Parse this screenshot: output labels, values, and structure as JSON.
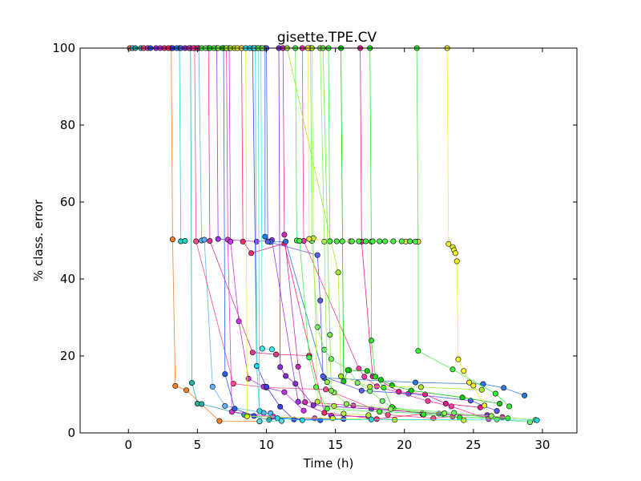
{
  "chart_data": {
    "type": "line",
    "title": "gisette.TPE.CV",
    "xlabel": "Time (h)",
    "ylabel": "% class. error",
    "xlim": [
      -3.5,
      32.5
    ],
    "ylim": [
      0,
      100
    ],
    "xticks": [
      0,
      5,
      10,
      15,
      20,
      25,
      30
    ],
    "yticks": [
      0,
      20,
      40,
      60,
      80,
      100
    ],
    "grid": false,
    "legend": "none",
    "series": [
      {
        "color": "#f4812c",
        "points": [
          [
            0.1,
            100
          ],
          [
            3.1,
            100
          ],
          [
            3.2,
            50.3
          ],
          [
            3.4,
            12.2
          ],
          [
            4.2,
            11.1
          ],
          [
            6.6,
            3.1
          ],
          [
            9.5,
            3.0
          ]
        ]
      },
      {
        "color": "#62b3ff",
        "points": [
          [
            0.3,
            100
          ],
          [
            5.1,
            100
          ],
          [
            5.3,
            50.0
          ],
          [
            5.5,
            50.2
          ],
          [
            6.1,
            12.0
          ],
          [
            7.0,
            7.0
          ],
          [
            9.8,
            5.2
          ],
          [
            10.3,
            5.1
          ]
        ]
      },
      {
        "color": "#24b2a8",
        "points": [
          [
            0.5,
            100
          ],
          [
            4.5,
            100
          ],
          [
            4.6,
            13.0
          ],
          [
            5.0,
            7.6
          ],
          [
            5.3,
            7.5
          ],
          [
            8.4,
            4.7
          ],
          [
            10.2,
            3.4
          ]
        ]
      },
      {
        "color": "#1fd4c6",
        "points": [
          [
            0.9,
            100
          ],
          [
            3.7,
            100
          ],
          [
            3.8,
            49.8
          ],
          [
            4.1,
            49.9
          ]
        ]
      },
      {
        "color": "#ff4d8a",
        "points": [
          [
            1.1,
            100
          ],
          [
            4.8,
            100
          ],
          [
            4.9,
            49.8
          ],
          [
            7.6,
            12.8
          ],
          [
            10.0,
            11.8
          ],
          [
            14.3,
            11.3
          ],
          [
            18.8,
            4.7
          ],
          [
            22.1,
            3.8
          ],
          [
            23.5,
            4.3
          ]
        ]
      },
      {
        "color": "#e838c8",
        "points": [
          [
            1.4,
            100
          ],
          [
            7.1,
            100
          ],
          [
            7.2,
            50.2
          ],
          [
            7.5,
            5.5
          ],
          [
            10.5,
            4.2
          ],
          [
            13.5,
            3.8
          ]
        ]
      },
      {
        "color": "#2a5df0",
        "points": [
          [
            1.6,
            100
          ],
          [
            6.9,
            100
          ],
          [
            7.0,
            15.3
          ],
          [
            7.7,
            6.3
          ],
          [
            9.1,
            4.4
          ],
          [
            13.9,
            3.3
          ]
        ]
      },
      {
        "color": "#9e35f0",
        "points": [
          [
            2.0,
            100
          ],
          [
            6.4,
            100
          ],
          [
            6.5,
            50.4
          ],
          [
            9.3,
            49.7
          ],
          [
            10.4,
            50.1
          ],
          [
            12.3,
            8.1
          ],
          [
            14.7,
            4.5
          ],
          [
            17.4,
            4.2
          ]
        ]
      },
      {
        "color": "#c934e8",
        "points": [
          [
            2.3,
            100
          ],
          [
            7.3,
            100
          ],
          [
            7.4,
            49.7
          ],
          [
            8.0,
            29.0
          ],
          [
            8.7,
            14.1
          ],
          [
            9.8,
            12.0
          ],
          [
            11.3,
            10.6
          ],
          [
            12.7,
            5.8
          ]
        ]
      },
      {
        "color": "#e7358f",
        "points": [
          [
            2.6,
            100
          ],
          [
            5.8,
            100
          ],
          [
            5.9,
            49.9
          ],
          [
            9.0,
            20.9
          ],
          [
            10.7,
            20.4
          ],
          [
            13.1,
            20.1
          ]
        ]
      },
      {
        "color": "#ff2a6d",
        "points": [
          [
            2.9,
            100
          ],
          [
            8.2,
            100
          ],
          [
            8.3,
            49.7
          ],
          [
            8.9,
            46.7
          ],
          [
            11.3,
            49.2
          ],
          [
            14.2,
            5.2
          ],
          [
            18.0,
            3.6
          ],
          [
            21.3,
            4.9
          ]
        ]
      },
      {
        "color": "#3c3cf0",
        "points": [
          [
            3.2,
            100
          ],
          [
            9.0,
            100
          ],
          [
            9.3,
            17.4
          ],
          [
            10.0,
            12.0
          ],
          [
            11.0,
            6.8
          ],
          [
            12.0,
            3.5
          ],
          [
            15.6,
            3.6
          ]
        ]
      },
      {
        "color": "#2a7ae2",
        "points": [
          [
            3.5,
            100
          ],
          [
            9.9,
            100
          ],
          [
            9.9,
            51.0
          ],
          [
            10.3,
            49.6
          ],
          [
            11.4,
            49.7
          ],
          [
            14.2,
            14.3
          ],
          [
            20.8,
            13.1
          ],
          [
            25.7,
            12.7
          ],
          [
            27.2,
            11.7
          ],
          [
            28.7,
            9.7
          ]
        ]
      },
      {
        "color": "#5a5cf0",
        "points": [
          [
            3.8,
            100
          ],
          [
            10.0,
            100
          ],
          [
            10.1,
            49.7
          ],
          [
            13.7,
            46.2
          ],
          [
            13.9,
            34.4
          ],
          [
            14.1,
            14.7
          ],
          [
            16.9,
            11.0
          ],
          [
            20.3,
            10.2
          ],
          [
            24.8,
            8.4
          ],
          [
            26.7,
            5.7
          ]
        ]
      },
      {
        "color": "#8c2bd8",
        "points": [
          [
            4.1,
            100
          ],
          [
            10.9,
            100
          ],
          [
            11.0,
            17.1
          ],
          [
            11.4,
            14.8
          ],
          [
            12.1,
            12.8
          ],
          [
            13.4,
            7.2
          ],
          [
            17.6,
            6.2
          ],
          [
            22.5,
            5.0
          ],
          [
            26.0,
            4.6
          ]
        ]
      },
      {
        "color": "#d02bb4",
        "points": [
          [
            4.4,
            100
          ],
          [
            11.2,
            100
          ],
          [
            11.3,
            51.5
          ],
          [
            12.3,
            17.2
          ],
          [
            12.8,
            8.0
          ],
          [
            16.3,
            7.1
          ],
          [
            21.3,
            5.1
          ],
          [
            27.1,
            4.1
          ]
        ]
      },
      {
        "color": "#ff3aa4",
        "points": [
          [
            4.7,
            100
          ],
          [
            12.6,
            100
          ],
          [
            12.7,
            49.9
          ],
          [
            16.7,
            16.7
          ],
          [
            17.1,
            14.6
          ],
          [
            18.0,
            12.1
          ],
          [
            21.7,
            8.3
          ],
          [
            23.4,
            6.9
          ],
          [
            26.1,
            3.6
          ]
        ]
      },
      {
        "color": "#e41e8e",
        "points": [
          [
            5.0,
            100
          ],
          [
            16.8,
            100
          ],
          [
            16.9,
            49.7
          ],
          [
            17.7,
            14.7
          ],
          [
            19.6,
            10.7
          ],
          [
            21.5,
            10.0
          ],
          [
            23.0,
            7.6
          ],
          [
            25.5,
            6.6
          ]
        ]
      },
      {
        "color": "#4ef04a",
        "points": [
          [
            5.3,
            100
          ],
          [
            12.1,
            100
          ],
          [
            12.2,
            50.0
          ],
          [
            12.4,
            49.9
          ],
          [
            13.1,
            19.6
          ],
          [
            13.6,
            11.9
          ],
          [
            14.4,
            6.3
          ],
          [
            18.2,
            5.5
          ],
          [
            22.8,
            4.9
          ]
        ]
      },
      {
        "color": "#6ef06a",
        "points": [
          [
            5.6,
            100
          ],
          [
            13.2,
            100
          ],
          [
            13.3,
            49.9
          ],
          [
            13.7,
            27.5
          ],
          [
            14.2,
            21.6
          ],
          [
            14.7,
            19.2
          ],
          [
            16.0,
            16.3
          ],
          [
            16.6,
            13.0
          ],
          [
            17.5,
            10.9
          ],
          [
            18.4,
            8.3
          ],
          [
            19.2,
            6.4
          ],
          [
            23.6,
            5.2
          ],
          [
            26.7,
            3.5
          ],
          [
            29.1,
            2.8
          ]
        ]
      },
      {
        "color": "#2ae82a",
        "points": [
          [
            5.9,
            100
          ],
          [
            17.5,
            100
          ],
          [
            17.6,
            49.7
          ],
          [
            17.6,
            24.0
          ],
          [
            17.9,
            14.6
          ],
          [
            18.5,
            11.8
          ],
          [
            19.1,
            6.7
          ],
          [
            21.4,
            4.8
          ],
          [
            24.0,
            4.0
          ],
          [
            27.5,
            3.8
          ]
        ]
      },
      {
        "color": "#3cf03c",
        "points": [
          [
            6.2,
            100
          ],
          [
            20.9,
            100
          ],
          [
            21.0,
            49.7
          ],
          [
            21.0,
            21.3
          ],
          [
            23.5,
            16.5
          ],
          [
            26.6,
            10.2
          ],
          [
            27.6,
            6.9
          ]
        ]
      },
      {
        "color": "#8ff05a",
        "points": [
          [
            6.5,
            100
          ],
          [
            13.9,
            100
          ],
          [
            14.2,
            49.7
          ],
          [
            14.4,
            13.2
          ],
          [
            14.9,
            10.5
          ],
          [
            15.8,
            7.5
          ],
          [
            19.0,
            6.2
          ],
          [
            22.9,
            5.1
          ],
          [
            26.3,
            4.4
          ],
          [
            29.5,
            3.4
          ]
        ]
      },
      {
        "color": "#14c814",
        "points": [
          [
            6.8,
            100
          ],
          [
            15.4,
            100
          ],
          [
            15.6,
            13.4
          ],
          [
            15.9,
            16.3
          ],
          [
            17.3,
            16.1
          ],
          [
            18.3,
            13.8
          ],
          [
            19.1,
            12.4
          ],
          [
            20.5,
            11.0
          ],
          [
            24.2,
            9.2
          ],
          [
            26.9,
            7.6
          ]
        ]
      },
      {
        "color": "#b4f03a",
        "points": [
          [
            7.1,
            100
          ],
          [
            13.3,
            100
          ],
          [
            13.4,
            50.6
          ],
          [
            13.7,
            8.1
          ],
          [
            14.9,
            7.0
          ],
          [
            15.6,
            5.0
          ],
          [
            17.4,
            4.6
          ]
        ]
      },
      {
        "color": "#a8e82a",
        "points": [
          [
            7.4,
            100
          ],
          [
            11.5,
            100
          ],
          [
            15.2,
            41.7
          ],
          [
            15.4,
            14.7
          ],
          [
            17.5,
            12.0
          ],
          [
            21.2,
            11.9
          ],
          [
            25.6,
            11.2
          ]
        ]
      },
      {
        "color": "#d8f02a",
        "points": [
          [
            7.7,
            100
          ],
          [
            8.5,
            100
          ],
          [
            8.6,
            4.3
          ],
          [
            14.8,
            3.8
          ],
          [
            19.3,
            3.4
          ],
          [
            24.3,
            3.3
          ]
        ]
      },
      {
        "color": "#f0f02a",
        "points": [
          [
            7.9,
            100
          ],
          [
            23.1,
            100
          ],
          [
            23.2,
            49.1
          ],
          [
            23.5,
            48.3
          ],
          [
            23.6,
            47.5
          ],
          [
            23.7,
            46.7
          ],
          [
            23.8,
            44.6
          ],
          [
            23.9,
            19.1
          ],
          [
            24.3,
            16.1
          ],
          [
            24.7,
            13.1
          ],
          [
            25.0,
            12.3
          ],
          [
            25.8,
            7.1
          ]
        ]
      },
      {
        "color": "#ffe44a",
        "points": [
          [
            8.2,
            100
          ],
          [
            13.0,
            100
          ],
          [
            13.1,
            50.4
          ],
          [
            14.6,
            49.8
          ],
          [
            16.1,
            49.8
          ],
          [
            20.1,
            49.7
          ],
          [
            21.0,
            49.7
          ]
        ]
      },
      {
        "color": "#3af0f0",
        "points": [
          [
            8.5,
            100
          ],
          [
            9.6,
            100
          ],
          [
            9.7,
            21.9
          ],
          [
            10.4,
            21.7
          ]
        ]
      },
      {
        "color": "#20d8e0",
        "points": [
          [
            8.8,
            100
          ],
          [
            9.2,
            100
          ],
          [
            9.3,
            17.4
          ],
          [
            9.5,
            5.7
          ],
          [
            10.8,
            3.8
          ],
          [
            12.6,
            3.3
          ],
          [
            17.6,
            3.5
          ],
          [
            29.6,
            3.3
          ]
        ]
      },
      {
        "color": "#5ad8e8",
        "points": [
          [
            9.1,
            100
          ],
          [
            9.4,
            100
          ],
          [
            9.5,
            3.0
          ],
          [
            11.1,
            3.1
          ]
        ]
      },
      {
        "color": "#4cf04c",
        "points": [
          [
            9.4,
            100
          ],
          [
            14.5,
            100
          ],
          [
            14.6,
            49.8
          ],
          [
            15.1,
            49.8
          ],
          [
            15.5,
            49.8
          ],
          [
            16.2,
            49.8
          ],
          [
            16.7,
            49.8
          ],
          [
            17.2,
            49.8
          ],
          [
            17.7,
            49.8
          ],
          [
            18.2,
            49.8
          ],
          [
            18.6,
            49.8
          ],
          [
            19.2,
            49.8
          ],
          [
            19.8,
            49.8
          ],
          [
            20.4,
            49.8
          ],
          [
            20.8,
            49.7
          ]
        ]
      },
      {
        "color": "#7ae84a",
        "points": [
          [
            9.7,
            100
          ],
          [
            14.1,
            100
          ],
          [
            14.6,
            25.5
          ],
          [
            14.7,
            11.0
          ]
        ]
      }
    ]
  }
}
